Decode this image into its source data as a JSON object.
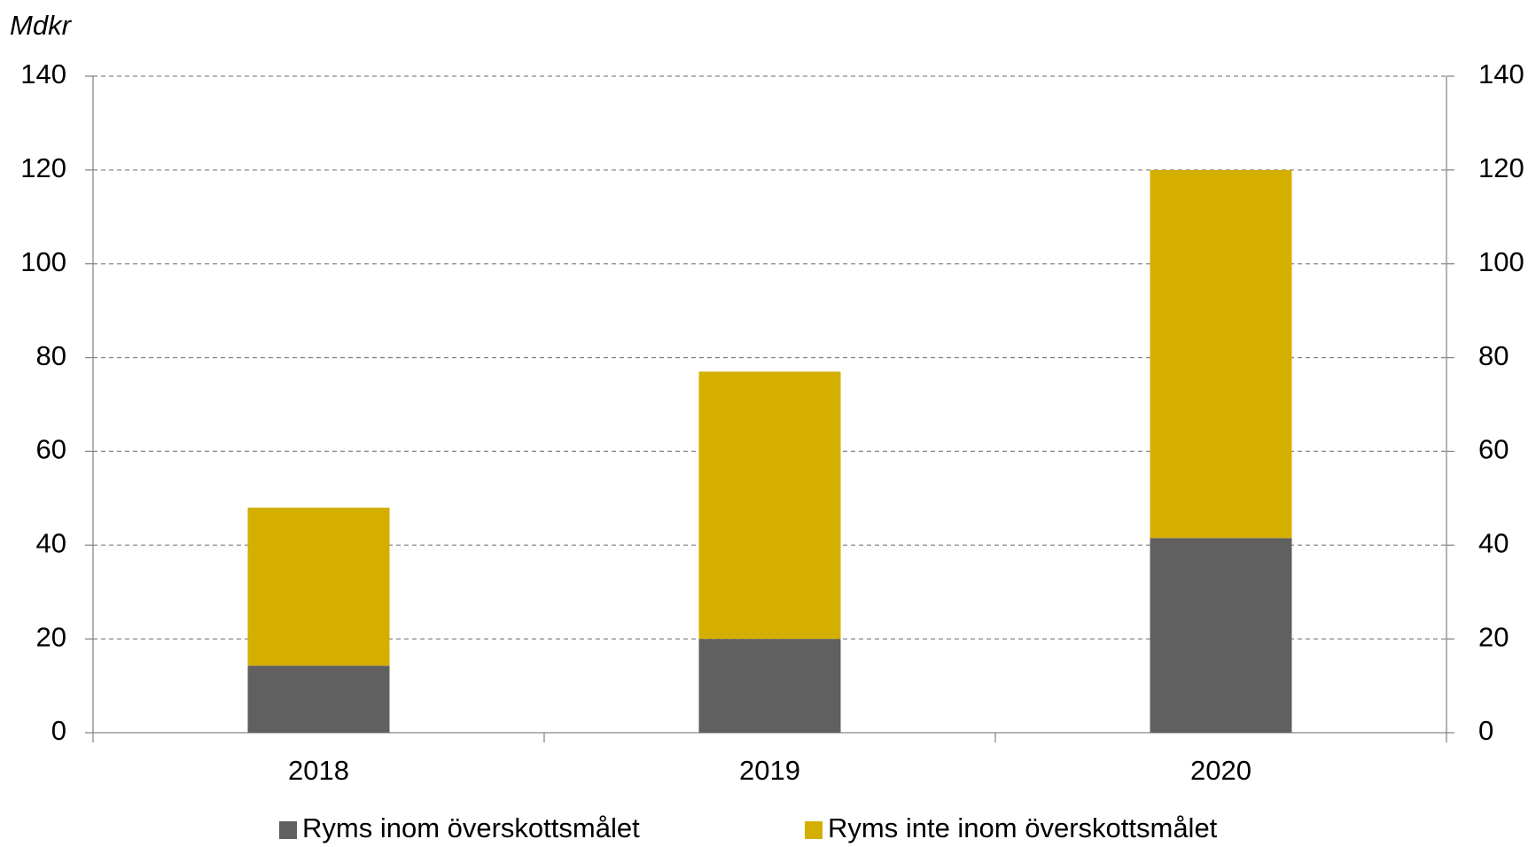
{
  "chart_data": {
    "type": "stacked_bar",
    "y_axis_label": "Mdkr",
    "categories": [
      "2018",
      "2019",
      "2020"
    ],
    "series": [
      {
        "name": "Ryms inom överskottsmålet",
        "color": "#606060",
        "values": [
          14.3,
          20,
          41.5
        ]
      },
      {
        "name": "Ryms inte inom överskottsmålet",
        "color": "#d4af00",
        "values": [
          33.7,
          57,
          78.5
        ]
      }
    ],
    "ylim": [
      0,
      140
    ],
    "yticks": [
      0,
      20,
      40,
      60,
      80,
      100,
      120,
      140
    ],
    "y2lim": [
      0,
      140
    ],
    "y2ticks": [
      0,
      20,
      40,
      60,
      80,
      100,
      120,
      140
    ],
    "grid": true,
    "legend": "bottom"
  }
}
